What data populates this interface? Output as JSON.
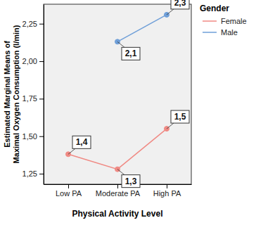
{
  "chart_data": {
    "type": "line",
    "x_label": "Physical Activity Level",
    "y_label": "Estimated Marginal Means of Maximal Oxygen Consumption (l/min)",
    "legend_title": "Gender",
    "legend": "outside-top-right",
    "grid": false,
    "data_labels": true,
    "categories": [
      "Low PA",
      "Moderate PA",
      "High PA"
    ],
    "series": [
      {
        "name": "Female",
        "color": "#f08a84",
        "marker": "circle",
        "values": [
          1.38,
          1.28,
          1.55
        ],
        "value_labels": [
          "1,4",
          "1,3",
          "1,5"
        ]
      },
      {
        "name": "Male",
        "color": "#6f9fd8",
        "marker": "circle",
        "values": [
          null,
          2.13,
          2.31
        ],
        "value_labels": [
          null,
          "2,1",
          "2,3"
        ]
      }
    ],
    "ylim": [
      1.18,
      2.38
    ],
    "yticks": [
      {
        "value": 1.25,
        "label": "1,25"
      },
      {
        "value": 1.5,
        "label": "1,50"
      },
      {
        "value": 1.75,
        "label": "1,75"
      },
      {
        "value": 2.0,
        "label": "2,00"
      },
      {
        "value": 2.25,
        "label": "2,25"
      }
    ]
  }
}
